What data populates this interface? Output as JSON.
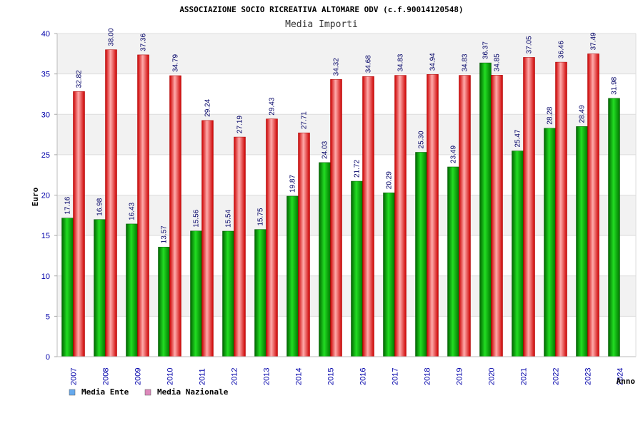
{
  "chart_data": {
    "type": "bar",
    "title": "ASSOCIAZIONE SOCIO RICREATIVA ALTOMARE ODV (c.f.90014120548)",
    "subtitle": "Media Importi",
    "xlabel": "Anno",
    "ylabel": "Euro",
    "ylim": [
      0,
      40
    ],
    "yticks": [
      "0",
      "5",
      "10",
      "15",
      "20",
      "25",
      "30",
      "35",
      "40"
    ],
    "categories": [
      "2007",
      "2008",
      "2009",
      "2010",
      "2011",
      "2012",
      "2013",
      "2014",
      "2015",
      "2016",
      "2017",
      "2018",
      "2019",
      "2020",
      "2021",
      "2022",
      "2023",
      "2024"
    ],
    "series": [
      {
        "name": "Media Ente",
        "color": "#00aa00",
        "legend_color": "#66aaee",
        "values": [
          17.16,
          16.98,
          16.43,
          13.57,
          15.56,
          15.54,
          15.75,
          19.87,
          24.03,
          21.72,
          20.29,
          25.3,
          23.49,
          36.37,
          25.47,
          28.28,
          28.49,
          31.98
        ],
        "labels": [
          "17.16",
          "16.98",
          "16.43",
          "13.57",
          "15.56",
          "15.54",
          "15.75",
          "19.87",
          "24.03",
          "21.72",
          "20.29",
          "25.30",
          "23.49",
          "36.37",
          "25.47",
          "28.28",
          "28.49",
          "31.98"
        ]
      },
      {
        "name": "Media Nazionale",
        "color": "#ee2222",
        "legend_color": "#dd88bb",
        "values": [
          32.82,
          38.0,
          37.36,
          34.79,
          29.24,
          27.19,
          29.43,
          27.71,
          34.32,
          34.68,
          34.83,
          34.94,
          34.83,
          34.85,
          37.05,
          36.46,
          37.49,
          null
        ],
        "labels": [
          "32.82",
          "38.00",
          "37.36",
          "34.79",
          "29.24",
          "27.19",
          "29.43",
          "27.71",
          "34.32",
          "34.68",
          "34.83",
          "34.94",
          "34.83",
          "34.85",
          "37.05",
          "36.46",
          "37.49",
          ""
        ]
      }
    ],
    "grid": true,
    "legend_position": "bottom-left"
  }
}
